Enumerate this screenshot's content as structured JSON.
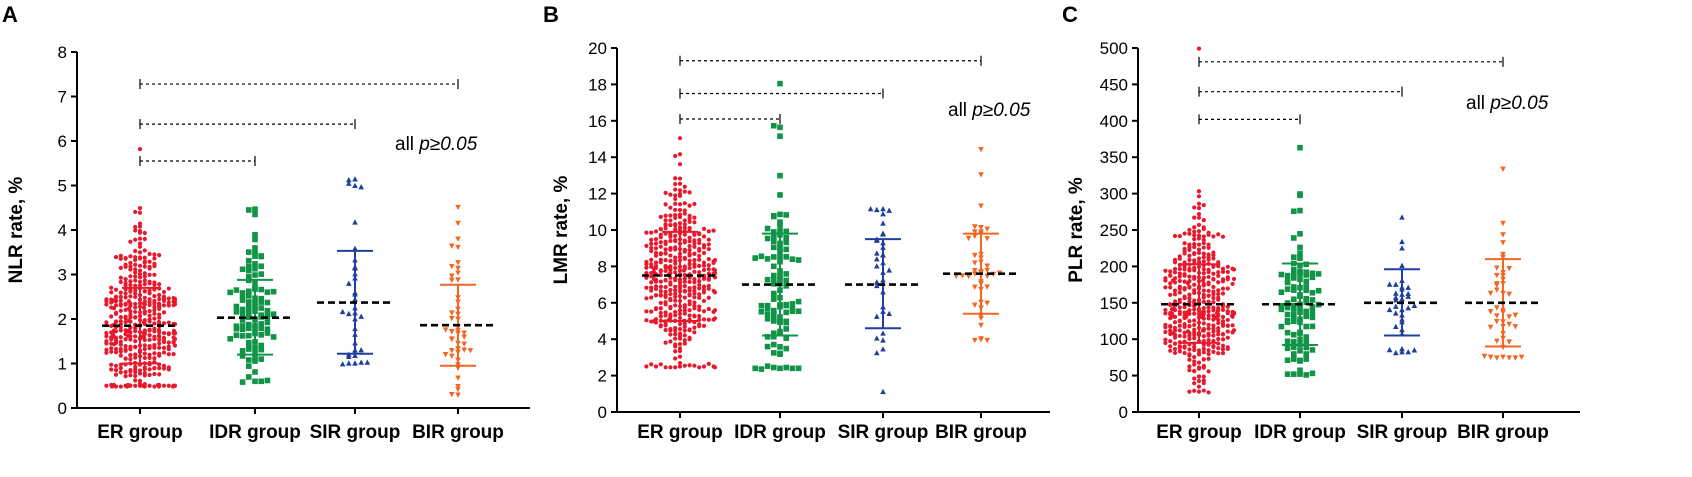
{
  "colors": {
    "ER group": "#e8192c",
    "IDR group": "#119447",
    "SIR group": "#1f3f9e",
    "BIR group": "#f26522",
    "axis": "#000000"
  },
  "chart_data": [
    {
      "panel": "A",
      "type": "scatter",
      "ylabel": "NLR rate, %",
      "ylim": [
        0,
        8
      ],
      "yticks": [
        0,
        1,
        2,
        3,
        4,
        5,
        6,
        7,
        8
      ],
      "categories": [
        "ER group",
        "IDR group",
        "SIR group",
        "BIR group"
      ],
      "annotation": "all ",
      "annotation_p": "p≥0.05",
      "brackets": [
        {
          "from": "ER group",
          "to": "IDR group",
          "y": 5.55
        },
        {
          "from": "ER group",
          "to": "SIR group",
          "y": 6.38
        },
        {
          "from": "ER group",
          "to": "BIR group",
          "y": 7.28
        }
      ],
      "series": [
        {
          "name": "ER group",
          "marker": "dot",
          "n": 420,
          "mean": 1.85,
          "sd_lower": 1.0,
          "sd_upper": 2.7,
          "min": 0.5,
          "max": 5.8,
          "median": 1.75
        },
        {
          "name": "IDR group",
          "marker": "square",
          "n": 100,
          "mean": 2.03,
          "sd_lower": 1.2,
          "sd_upper": 2.88,
          "min": 0.6,
          "max": 4.45,
          "median": 1.95
        },
        {
          "name": "SIR group",
          "marker": "triangle-up",
          "n": 35,
          "mean": 2.37,
          "sd_lower": 1.22,
          "sd_upper": 3.53,
          "min": 1.0,
          "max": 5.12,
          "median": 2.2
        },
        {
          "name": "BIR group",
          "marker": "triangle-down",
          "n": 45,
          "mean": 1.86,
          "sd_lower": 0.95,
          "sd_upper": 2.77,
          "min": 0.3,
          "max": 4.5,
          "median": 1.8
        }
      ]
    },
    {
      "panel": "B",
      "type": "scatter",
      "ylabel": "LMR rate, %",
      "ylim": [
        0,
        20
      ],
      "yticks": [
        0,
        2,
        4,
        6,
        8,
        10,
        12,
        14,
        16,
        18,
        20
      ],
      "categories": [
        "ER group",
        "IDR group",
        "SIR group",
        "BIR group"
      ],
      "annotation": "all ",
      "annotation_p": "p≥0.05",
      "brackets": [
        {
          "from": "ER group",
          "to": "IDR group",
          "y": 16.1
        },
        {
          "from": "ER group",
          "to": "SIR group",
          "y": 17.5
        },
        {
          "from": "ER group",
          "to": "BIR group",
          "y": 19.3
        }
      ],
      "series": [
        {
          "name": "ER group",
          "marker": "dot",
          "n": 420,
          "mean": 7.5,
          "sd_lower": 5.0,
          "sd_upper": 9.9,
          "min": 2.5,
          "max": 15.0,
          "median": 7.4
        },
        {
          "name": "IDR group",
          "marker": "square",
          "n": 100,
          "mean": 7.0,
          "sd_lower": 4.2,
          "sd_upper": 9.8,
          "min": 2.4,
          "max": 18.0,
          "median": 6.8
        },
        {
          "name": "SIR group",
          "marker": "triangle-up",
          "n": 35,
          "mean": 7.0,
          "sd_lower": 4.6,
          "sd_upper": 9.5,
          "min": 1.1,
          "max": 11.1,
          "median": 7.0
        },
        {
          "name": "BIR group",
          "marker": "triangle-down",
          "n": 45,
          "mean": 7.6,
          "sd_lower": 5.4,
          "sd_upper": 9.8,
          "min": 4.0,
          "max": 14.4,
          "median": 7.5
        }
      ]
    },
    {
      "panel": "C",
      "type": "scatter",
      "ylabel": "PLR rate, %",
      "ylim": [
        0,
        500
      ],
      "yticks": [
        0,
        50,
        100,
        150,
        200,
        250,
        300,
        350,
        400,
        450,
        500
      ],
      "categories": [
        "ER group",
        "IDR group",
        "SIR group",
        "BIR group"
      ],
      "annotation": "all ",
      "annotation_p": "p≥0.05",
      "brackets": [
        {
          "from": "ER group",
          "to": "IDR group",
          "y": 402
        },
        {
          "from": "ER group",
          "to": "SIR group",
          "y": 440
        },
        {
          "from": "ER group",
          "to": "BIR group",
          "y": 481
        }
      ],
      "series": [
        {
          "name": "ER group",
          "marker": "dot",
          "n": 420,
          "mean": 148,
          "sd_lower": 95,
          "sd_upper": 203,
          "min": 28,
          "max": 498,
          "median": 142
        },
        {
          "name": "IDR group",
          "marker": "square",
          "n": 100,
          "mean": 148,
          "sd_lower": 92,
          "sd_upper": 204,
          "min": 52,
          "max": 362,
          "median": 142
        },
        {
          "name": "SIR group",
          "marker": "triangle-up",
          "n": 35,
          "mean": 150,
          "sd_lower": 105,
          "sd_upper": 196,
          "min": 82,
          "max": 266,
          "median": 148
        },
        {
          "name": "BIR group",
          "marker": "triangle-down",
          "n": 45,
          "mean": 150,
          "sd_lower": 90,
          "sd_upper": 210,
          "min": 76,
          "max": 333,
          "median": 145
        }
      ]
    }
  ]
}
